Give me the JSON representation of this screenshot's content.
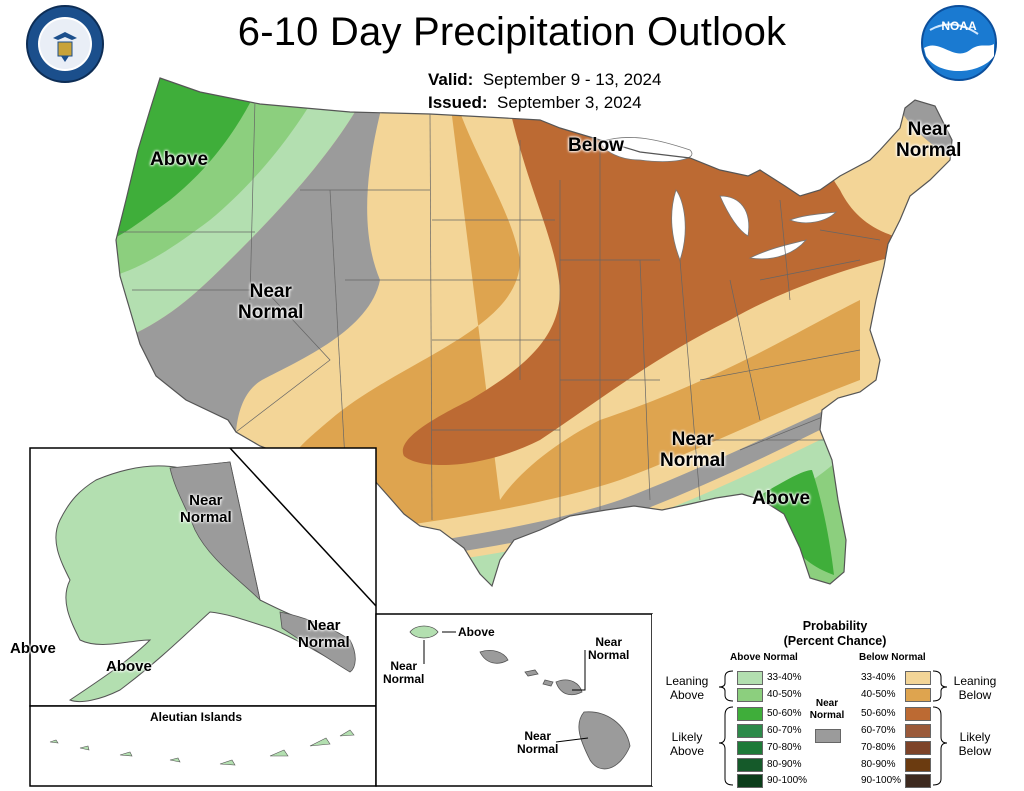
{
  "header": {
    "title": "6-10 Day Precipitation Outlook",
    "valid_label": "Valid:",
    "valid_value": "September 9 - 13, 2024",
    "issued_label": "Issued:",
    "issued_value": "September 3, 2024",
    "noaa_text": "NOAA"
  },
  "colors": {
    "above_33_40": "#b3dfb0",
    "above_40_50": "#8ccf7e",
    "above_50_60": "#3fae3a",
    "above_60_70": "#2d8a4a",
    "above_70_80": "#1e7a38",
    "above_80_90": "#155a2a",
    "above_90_100": "#0b3d1a",
    "near_normal": "#9b9b9b",
    "below_33_40": "#f3d597",
    "below_40_50": "#dea44f",
    "below_50_60": "#bc6a33",
    "below_60_70": "#9b5a3a",
    "below_70_80": "#7d4328",
    "below_80_90": "#6b3b10",
    "below_90_100": "#3d2a1f"
  },
  "map_labels": {
    "conus_above_west": "Above",
    "conus_near_normal_west_1": "Near",
    "conus_near_normal_west_2": "Normal",
    "conus_below": "Below",
    "conus_near_normal_ne_1": "Near",
    "conus_near_normal_ne_2": "Normal",
    "conus_near_normal_se_1": "Near",
    "conus_near_normal_se_2": "Normal",
    "conus_above_se": "Above",
    "ak_near_normal_n_1": "Near",
    "ak_near_normal_n_2": "Normal",
    "ak_near_normal_se_1": "Near",
    "ak_near_normal_se_2": "Normal",
    "ak_above_w": "Above",
    "ak_above_s": "Above",
    "aleutian_title": "Aleutian Islands",
    "hi_above": "Above",
    "hi_near_normal_w_1": "Near",
    "hi_near_normal_w_2": "Normal",
    "hi_near_normal_ne_1": "Near",
    "hi_near_normal_ne_2": "Normal",
    "hi_near_normal_s_1": "Near",
    "hi_near_normal_s_2": "Normal"
  },
  "legend": {
    "title_1": "Probability",
    "title_2": "(Percent Chance)",
    "above_header": "Above Normal",
    "below_header": "Below Normal",
    "near_normal_1": "Near",
    "near_normal_2": "Normal",
    "leaning_above_1": "Leaning",
    "leaning_above_2": "Above",
    "likely_above_1": "Likely",
    "likely_above_2": "Above",
    "leaning_below_1": "Leaning",
    "leaning_below_2": "Below",
    "likely_below_1": "Likely",
    "likely_below_2": "Below",
    "ranges": [
      "33-40%",
      "40-50%",
      "50-60%",
      "60-70%",
      "70-80%",
      "80-90%",
      "90-100%"
    ]
  }
}
